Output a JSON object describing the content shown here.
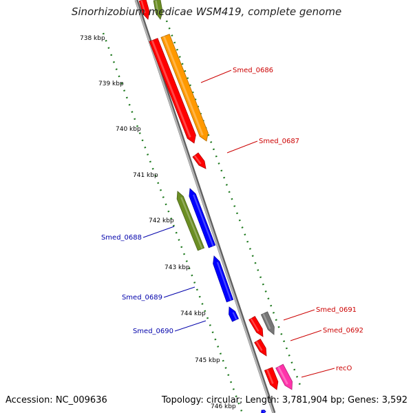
{
  "title": "Sinorhizobium medicae WSM419, complete genome",
  "accession_text": "Accession: NC_009636",
  "summary_text": "Topology: circular; Length: 3,781,904 bp; Genes: 3,592",
  "colors": {
    "backbone": "#8a8a8a",
    "tick": "#1f7a1f",
    "label_forward": "#cc0000",
    "label_reverse": "#0000aa"
  },
  "kbp_ticks": [
    "738 kbp",
    "739 kbp",
    "740 kbp",
    "741 kbp",
    "742 kbp",
    "743 kbp",
    "744 kbp",
    "745 kbp",
    "746 kbp"
  ],
  "genes": [
    {
      "name": "",
      "color": "#ff0000",
      "track": "f1"
    },
    {
      "name": "",
      "color": "#6b8e23",
      "track": "f2"
    },
    {
      "name": "Smed_0686",
      "color": "#ff9900",
      "track": "f2"
    },
    {
      "name": "",
      "color": "#ff0000",
      "track": "f1"
    },
    {
      "name": "Smed_0687",
      "color": "#ff0000",
      "track": "f1"
    },
    {
      "name": "Smed_0688",
      "color": "#6b8e23",
      "track": "r2"
    },
    {
      "name": "",
      "color": "#0000ff",
      "track": "r1"
    },
    {
      "name": "Smed_0689",
      "color": "#0000ff",
      "track": "r1"
    },
    {
      "name": "Smed_0690",
      "color": "#0000ff",
      "track": "r1"
    },
    {
      "name": "Smed_0691",
      "color": "#ff0000",
      "track": "f1"
    },
    {
      "name": "Smed_0692",
      "color": "#777777",
      "track": "f2"
    },
    {
      "name": "",
      "color": "#ff0000",
      "track": "f1"
    },
    {
      "name": "recO",
      "color": "#ff0000",
      "track": "f1"
    },
    {
      "name": "",
      "color": "#ff33aa",
      "track": "f2"
    },
    {
      "name": "",
      "color": "#0000ff",
      "track": "r1"
    }
  ]
}
